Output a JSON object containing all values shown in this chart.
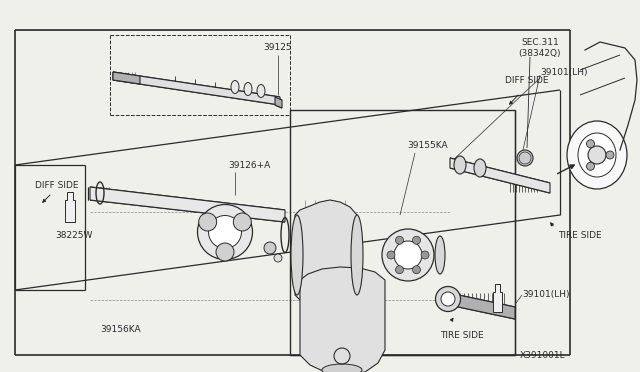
{
  "bg_color": "#ffffff",
  "line_color": "#2a2a2a",
  "fig_bg": "#f0f0eb",
  "labels": {
    "SEC311_line1": "SEC.311",
    "SEC311_line2": "(38342Q)",
    "DIFF_SIDE_top": "DIFF SIDE",
    "DIFF_SIDE_bot": "DIFF SIDE",
    "39101_LH_top": "39101(LH)",
    "39101_LH_bot": "39101(LH)",
    "TIRE_SIDE_top": "TIRE SIDE",
    "TIRE_SIDE_bot": "TIRE SIDE",
    "39125": "39125",
    "39126A": "39126+A",
    "39155KA": "39155KA",
    "39156KA": "39156KA",
    "38225W": "38225W",
    "diagram_id": "X391001L"
  }
}
